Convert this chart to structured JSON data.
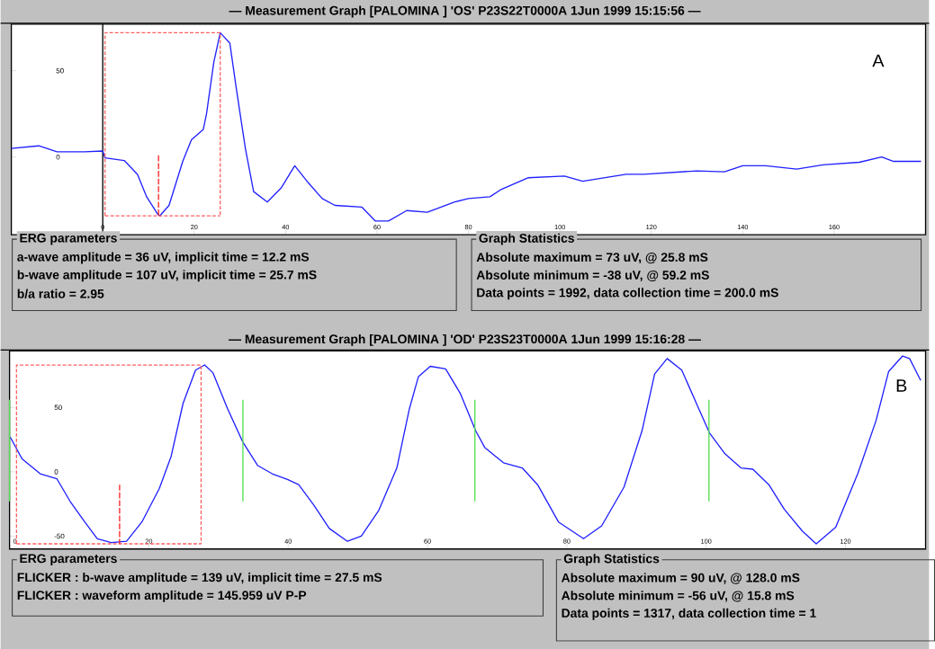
{
  "chart_data": [
    {
      "type": "line",
      "title": "— Measurement Graph [PALOMINA ] 'OS' P23S22T0000A 1Jun 1999 15:15:56 —",
      "xlim": [
        -20,
        180
      ],
      "ylim": [
        -45,
        77
      ],
      "xticks": [
        0,
        20,
        40,
        60,
        80,
        100,
        120,
        140,
        160
      ],
      "yticks": [
        0,
        50
      ],
      "ref_lines": [
        {
          "axis": "x",
          "value": 0,
          "color": "#000000"
        }
      ],
      "series": [
        {
          "color": "#2020ff",
          "x": [
            -20,
            -14,
            -10,
            -4,
            0,
            0.5,
            4.7,
            7.6,
            9.6,
            12,
            12.5,
            14.5,
            17.5,
            19.4,
            22,
            22.7,
            24.3,
            25.7,
            27.8,
            29.2,
            31.2,
            33,
            36,
            39,
            42,
            45,
            48,
            50.8,
            56.7,
            59.6,
            62.5,
            66.5,
            71,
            77,
            80,
            84.7,
            87,
            93,
            101,
            105,
            114.5,
            118.4,
            130,
            136,
            140,
            145,
            151.8,
            157.6,
            165.5,
            170.4,
            173,
            179
          ],
          "values": [
            5,
            6.5,
            3,
            3,
            3.5,
            -0.5,
            -2,
            -10,
            -23,
            -33,
            -34,
            -28,
            -2.5,
            10,
            16,
            25,
            55,
            72,
            66,
            40,
            5,
            -20,
            -26,
            -18,
            -5,
            -15,
            -24,
            -28,
            -29,
            -37,
            -37,
            -31,
            -32,
            -26,
            -24,
            -23,
            -19,
            -12,
            -11,
            -14,
            -10,
            -10,
            -8,
            -8.5,
            -5,
            -5,
            -7,
            -4.5,
            -3,
            0,
            -2.5,
            -2.5
          ]
        },
        {
          "color": "#ff6060",
          "line_style": "dotted",
          "x": [
            0.5,
            0.5,
            25.7,
            25.7
          ],
          "values": [
            -34,
            72,
            72,
            -34
          ]
        },
        {
          "color": "#ff6060",
          "line_style": "dotted",
          "x": [
            0.5,
            25.7
          ],
          "values": [
            -34,
            -34
          ]
        },
        {
          "color": "#ff2020",
          "line_style": "dashed",
          "x": [
            12.2,
            12.2
          ],
          "values": [
            1,
            -34
          ]
        }
      ],
      "annotations": [
        "ERG parameters",
        "a-wave amplitude = 36 uV, implicit time = 12.2 mS",
        "b-wave amplitude = 107 uV, implicit time = 25.7 mS",
        "b/a ratio = 2.95",
        "Graph Statistics",
        "Absolute maximum = 73 uV, @ 25.8 mS",
        "Absolute minimum = -38 uV, @ 59.2 mS",
        "Data points = 1992, data collection time = 200.0 mS",
        "A"
      ]
    },
    {
      "type": "line",
      "title": "— Measurement Graph [PALOMINA ] 'OD' P23S23T0000A 1Jun 1999 15:16:28 —",
      "xlim": [
        0,
        131.5
      ],
      "ylim": [
        -60,
        94
      ],
      "xticks": [
        0,
        20,
        40,
        60,
        80,
        100,
        120
      ],
      "yticks": [
        -50,
        0,
        50
      ],
      "series": [
        {
          "color": "#2020ff",
          "x": [
            0.1,
            1.8,
            4.4,
            6.8,
            8.7,
            10.8,
            12.6,
            14.6,
            16.8,
            19,
            21.5,
            23.2,
            24.9,
            26.7,
            28,
            29.2,
            31.3,
            33.5,
            35.6,
            37.7,
            39.9,
            41.5,
            43.7,
            45.9,
            48.5,
            50.5,
            53,
            55.6,
            57.4,
            58.7,
            60.4,
            62.6,
            64.7,
            66.9,
            68.2,
            70.9,
            73.6,
            75.8,
            78.8,
            82.4,
            85,
            88.2,
            90.8,
            92.6,
            94.4,
            96.5,
            98.7,
            100.5,
            102.7,
            105,
            106.7,
            109,
            111.2,
            113.8,
            115.8,
            118.6,
            121.8,
            124.4,
            126.2,
            128.2,
            129.2,
            130.8
          ],
          "values": [
            27,
            10,
            -1.5,
            -5.5,
            -23,
            -39,
            -52,
            -55,
            -54,
            -39,
            -13,
            12,
            53,
            79,
            83,
            77,
            49,
            23,
            5,
            -1.5,
            -6,
            -10,
            -26,
            -44,
            -54,
            -50,
            -30,
            3,
            49,
            74,
            82,
            80,
            61,
            32,
            19,
            7,
            3,
            -10,
            -39,
            -52,
            -42,
            -12,
            32,
            76,
            88,
            79,
            52,
            30,
            14,
            3,
            2,
            -10,
            -29,
            -46,
            -56,
            -43,
            -1,
            40,
            78,
            90,
            88,
            71
          ]
        },
        {
          "color": "#ff6060",
          "line_style": "dotted",
          "x": [
            1,
            1,
            27.5,
            27.5
          ],
          "values": [
            -56,
            83,
            83,
            -56
          ]
        },
        {
          "color": "#ff6060",
          "line_style": "dotted",
          "x": [
            1,
            27.5
          ],
          "values": [
            -56,
            -56
          ]
        },
        {
          "color": "#ff2020",
          "line_style": "dashed",
          "x": [
            15.8,
            15.8
          ],
          "values": [
            -10,
            -56
          ]
        },
        {
          "color": "#50e050",
          "x": [
            0,
            0
          ],
          "values": [
            56,
            -23
          ]
        },
        {
          "color": "#50e050",
          "x": [
            33.5,
            33.5
          ],
          "values": [
            56,
            -23
          ]
        },
        {
          "color": "#50e050",
          "x": [
            66.8,
            66.8
          ],
          "values": [
            56,
            -23
          ]
        },
        {
          "color": "#50e050",
          "x": [
            100.4,
            100.4
          ],
          "values": [
            56,
            -23
          ]
        }
      ],
      "annotations": [
        "ERG parameters",
        "FLICKER : b-wave amplitude = 139 uV, implicit time = 27.5 mS",
        "FLICKER : waveform amplitude = 145.959 uV P-P",
        "Graph Statistics",
        "Absolute maximum = 90 uV, @ 128.0 mS",
        "Absolute minimum = -56 uV, @ 15.8 mS",
        "Data points = 1317, data collection time = 1",
        "B"
      ]
    }
  ]
}
